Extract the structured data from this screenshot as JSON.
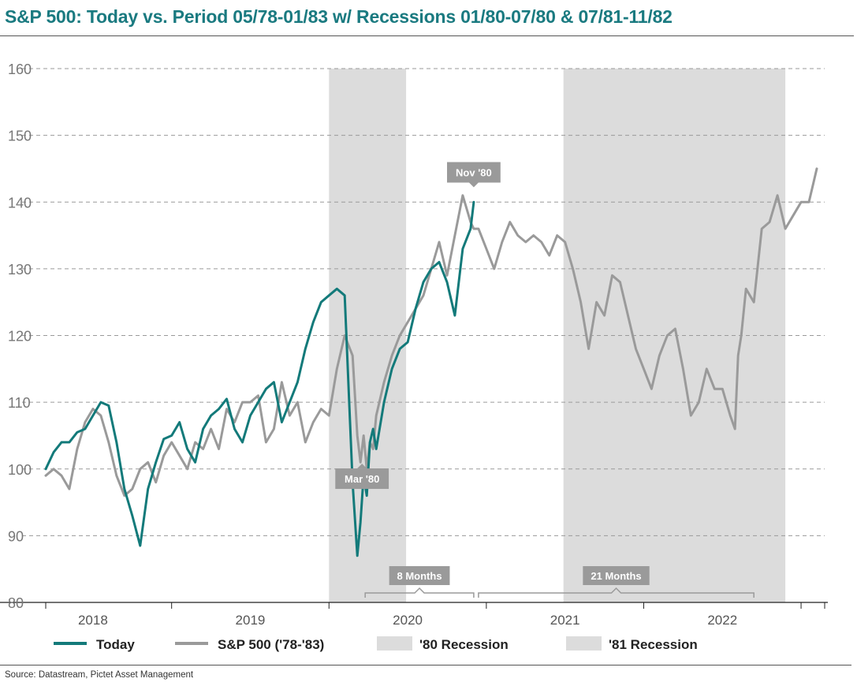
{
  "title": "S&P 500: Today vs. Period 05/78-01/83 w/ Recessions 01/80-07/80 & 07/81-11/82",
  "source": "Source: Datastream, Pictet Asset Management",
  "colors": {
    "today": "#137a7a",
    "sp500": "#9a9a9a",
    "recession": "#dcdcdc",
    "grid": "#9a9a9a",
    "callout": "#9a9a9a",
    "title": "#1a7a80"
  },
  "chart_data": {
    "type": "line",
    "x_axis": {
      "min": 2017.7,
      "max": 2022.65,
      "tick_labels": [
        "2018",
        "2019",
        "2020",
        "2021",
        "2022"
      ],
      "tick_label_positions": [
        2018.0,
        2019.0,
        2020.0,
        2021.0,
        2022.0
      ],
      "tick_marks": [
        2017.7,
        2018.5,
        2019.5,
        2020.5,
        2021.5,
        2022.5,
        2022.65
      ]
    },
    "y_axis": {
      "min": 80,
      "max": 160,
      "ticks": [
        80,
        90,
        100,
        110,
        120,
        130,
        140,
        150,
        160
      ]
    },
    "grid": "horizontal dashed",
    "legend_position": "bottom",
    "legend": [
      "Today",
      "S&P 500 ('78-'83)",
      "'80 Recession",
      "'81 Recession"
    ],
    "recessions": [
      {
        "name": "'80 Recession",
        "x_start": 2019.5,
        "x_end": 2019.99
      },
      {
        "name": "'81 Recession",
        "x_start": 2020.99,
        "x_end": 2022.4
      }
    ],
    "callouts": [
      {
        "label": "Mar '80",
        "x": 2019.71,
        "y": 101.5
      },
      {
        "label": "Nov '80",
        "x": 2020.42,
        "y": 141.5
      }
    ],
    "brackets": [
      {
        "label": "8 Months",
        "x_start": 2019.73,
        "x_end": 2020.42
      },
      {
        "label": "21 Months",
        "x_start": 2020.45,
        "x_end": 2022.2
      }
    ],
    "series": [
      {
        "name": "Today",
        "x": [
          2017.7,
          2017.75,
          2017.8,
          2017.85,
          2017.9,
          2017.95,
          2018.0,
          2018.05,
          2018.1,
          2018.15,
          2018.2,
          2018.25,
          2018.3,
          2018.35,
          2018.4,
          2018.45,
          2018.5,
          2018.55,
          2018.6,
          2018.65,
          2018.7,
          2018.75,
          2018.8,
          2018.85,
          2018.9,
          2018.95,
          2019.0,
          2019.05,
          2019.1,
          2019.15,
          2019.2,
          2019.25,
          2019.3,
          2019.35,
          2019.4,
          2019.45,
          2019.5,
          2019.55,
          2019.6,
          2019.65,
          2019.68,
          2019.7,
          2019.72,
          2019.74,
          2019.76,
          2019.78,
          2019.8,
          2019.85,
          2019.9,
          2019.95,
          2020.0,
          2020.05,
          2020.1,
          2020.15,
          2020.2,
          2020.25,
          2020.3,
          2020.35,
          2020.4,
          2020.42
        ],
        "y": [
          100,
          102.5,
          104,
          104,
          105.5,
          106,
          108,
          110,
          109.5,
          104,
          97,
          93,
          88.5,
          97,
          101,
          104.5,
          105,
          107,
          103,
          101,
          106,
          108,
          109,
          110.5,
          106,
          104,
          108,
          110,
          112,
          113,
          107,
          110,
          113,
          118,
          122,
          125,
          126,
          127,
          126,
          98,
          87,
          92,
          99,
          96,
          104,
          106,
          103,
          110,
          115,
          118,
          119,
          124,
          128,
          130,
          131,
          128,
          123,
          133,
          136,
          140
        ]
      },
      {
        "name": "S&P 500 ('78-'83)",
        "x": [
          2017.7,
          2017.75,
          2017.8,
          2017.85,
          2017.9,
          2017.95,
          2018.0,
          2018.05,
          2018.1,
          2018.15,
          2018.2,
          2018.25,
          2018.3,
          2018.35,
          2018.4,
          2018.45,
          2018.5,
          2018.55,
          2018.6,
          2018.65,
          2018.7,
          2018.75,
          2018.8,
          2018.85,
          2018.9,
          2018.95,
          2019.0,
          2019.05,
          2019.1,
          2019.15,
          2019.2,
          2019.25,
          2019.3,
          2019.35,
          2019.4,
          2019.45,
          2019.5,
          2019.55,
          2019.6,
          2019.65,
          2019.68,
          2019.7,
          2019.72,
          2019.74,
          2019.76,
          2019.78,
          2019.8,
          2019.85,
          2019.9,
          2019.95,
          2020.0,
          2020.05,
          2020.1,
          2020.15,
          2020.2,
          2020.25,
          2020.3,
          2020.35,
          2020.4,
          2020.42,
          2020.45,
          2020.5,
          2020.55,
          2020.6,
          2020.65,
          2020.7,
          2020.75,
          2020.8,
          2020.85,
          2020.9,
          2020.95,
          2021.0,
          2021.05,
          2021.1,
          2021.15,
          2021.2,
          2021.25,
          2021.3,
          2021.35,
          2021.4,
          2021.45,
          2021.5,
          2021.55,
          2021.6,
          2021.65,
          2021.7,
          2021.75,
          2021.8,
          2021.85,
          2021.9,
          2021.95,
          2022.0,
          2022.05,
          2022.08,
          2022.1,
          2022.12,
          2022.15,
          2022.2,
          2022.25,
          2022.3,
          2022.35,
          2022.4,
          2022.45,
          2022.5,
          2022.55,
          2022.58,
          2022.6
        ],
        "y": [
          99,
          100,
          99,
          97,
          103,
          107,
          109,
          108,
          104,
          99,
          96,
          97,
          100,
          101,
          98,
          102,
          104,
          102,
          100,
          104,
          103,
          106,
          103,
          109,
          107,
          110,
          110,
          111,
          104,
          106,
          113,
          108,
          110,
          104,
          107,
          109,
          108,
          115,
          120,
          117,
          105,
          101,
          105,
          100,
          104,
          103,
          108,
          113,
          117,
          120,
          122,
          124,
          126,
          130,
          134,
          129,
          135,
          141,
          137,
          136,
          136,
          133,
          130,
          134,
          137,
          135,
          134,
          135,
          134,
          132,
          135,
          134,
          130,
          125,
          118,
          125,
          123,
          129,
          128,
          123,
          118,
          115,
          112,
          117,
          120,
          121,
          115,
          108,
          110,
          115,
          112,
          112,
          108,
          106,
          117,
          120,
          127,
          125,
          136,
          137,
          141,
          136,
          138,
          140,
          140,
          143,
          145
        ]
      }
    ]
  },
  "legend_items": [
    {
      "label": "Today"
    },
    {
      "label": "S&P 500 ('78-'83)"
    },
    {
      "label": "'80 Recession"
    },
    {
      "label": "'81 Recession"
    }
  ]
}
